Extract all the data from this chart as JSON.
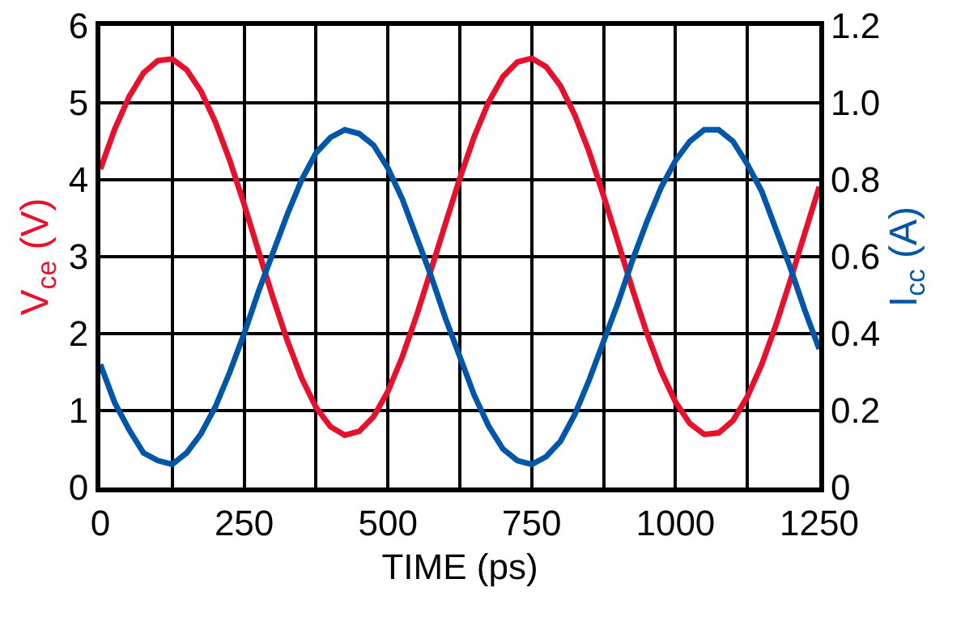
{
  "chart_data": {
    "type": "line",
    "xlabel": "TIME (ps)",
    "ylabel": "V$_{ce}$ (V)",
    "y2label": "I$_{cc}$ (A)",
    "x": [
      0,
      25,
      50,
      75,
      100,
      125,
      150,
      175,
      200,
      225,
      250,
      275,
      300,
      325,
      350,
      375,
      400,
      425,
      450,
      475,
      500,
      525,
      550,
      575,
      600,
      625,
      650,
      675,
      700,
      725,
      750,
      775,
      800,
      825,
      850,
      875,
      900,
      925,
      950,
      975,
      1000,
      1025,
      1050,
      1075,
      1100,
      1125,
      1150,
      1175,
      1200,
      1225,
      1250
    ],
    "series": [
      {
        "color": "#e8112d",
        "values": [
          4.14,
          4.66,
          5.08,
          5.39,
          5.55,
          5.57,
          5.43,
          5.15,
          4.75,
          4.25,
          3.68,
          3.07,
          2.47,
          1.91,
          1.42,
          1.04,
          0.79,
          0.68,
          0.73,
          0.92,
          1.25,
          1.7,
          2.24,
          2.83,
          3.43,
          4.02,
          4.56,
          5.01,
          5.34,
          5.53,
          5.58,
          5.47,
          5.22,
          4.84,
          4.36,
          3.79,
          3.19,
          2.58,
          2.01,
          1.51,
          1.11,
          0.83,
          0.69,
          0.71,
          0.87,
          1.18,
          1.6,
          2.12,
          2.7,
          3.31,
          3.91
        ]
      },
      {
        "color": "#0057a8",
        "axis": "y2",
        "values": [
          0.32,
          0.22,
          0.15,
          0.09,
          0.07,
          0.06,
          0.09,
          0.14,
          0.21,
          0.3,
          0.4,
          0.51,
          0.61,
          0.71,
          0.8,
          0.87,
          0.91,
          0.93,
          0.92,
          0.89,
          0.83,
          0.75,
          0.65,
          0.55,
          0.44,
          0.34,
          0.24,
          0.16,
          0.1,
          0.07,
          0.06,
          0.08,
          0.12,
          0.19,
          0.28,
          0.38,
          0.48,
          0.59,
          0.69,
          0.78,
          0.85,
          0.9,
          0.93,
          0.93,
          0.9,
          0.84,
          0.77,
          0.67,
          0.57,
          0.46,
          0.36
        ]
      }
    ],
    "xlim": [
      0,
      1250
    ],
    "xticks": [
      0,
      {
        "value": 125,
        "label": null
      },
      250,
      {
        "value": 375,
        "label": null
      },
      500,
      {
        "value": 625,
        "label": null
      },
      750,
      {
        "value": 875,
        "label": null
      },
      1000,
      {
        "value": 1125,
        "label": null
      },
      1250
    ],
    "ylim": [
      0,
      6
    ],
    "yticks": [
      0,
      1,
      2,
      3,
      4,
      5,
      6
    ],
    "y2lim": [
      0,
      1.2
    ],
    "y2ticks": [
      0,
      0.2,
      0.4,
      0.6,
      0.8,
      {
        "value": 1,
        "label": "1.0"
      },
      1.2
    ],
    "grid": true,
    "marker": "none",
    "line_style": "solid"
  }
}
